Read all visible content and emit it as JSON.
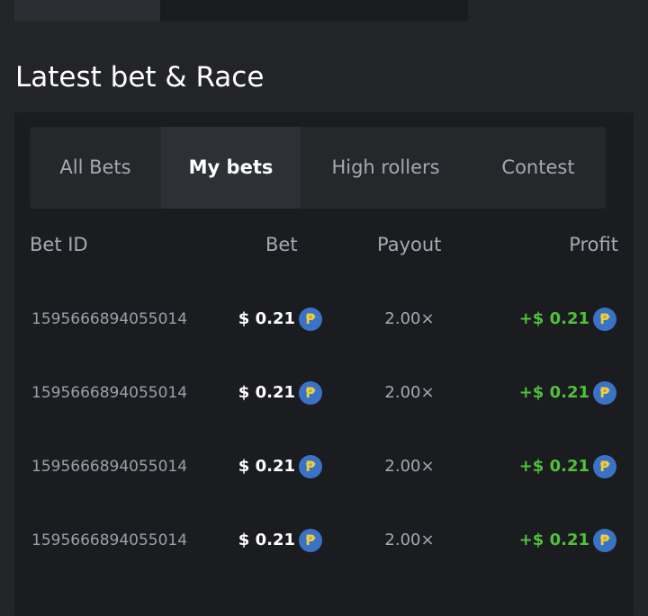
{
  "section_title": "Latest bet & Race",
  "tabs": [
    "All Bets",
    "My bets",
    "High rollers",
    "Contest"
  ],
  "table": {
    "headers": [
      "Bet ID",
      "Bet",
      "Payout",
      "Profit"
    ],
    "currency_symbol": "₱",
    "rows": [
      [
        "1595666894055014",
        "$ 0.21",
        "2.00×",
        "+$ 0.21"
      ],
      [
        "1595666894055014",
        "$ 0.21",
        "2.00×",
        "+$ 0.21"
      ],
      [
        "1595666894055014",
        "$ 0.21",
        "2.00×",
        "+$ 0.21"
      ],
      [
        "1595666894055014",
        "$ 0.21",
        "2.00×",
        "+$ 0.21"
      ]
    ]
  }
}
